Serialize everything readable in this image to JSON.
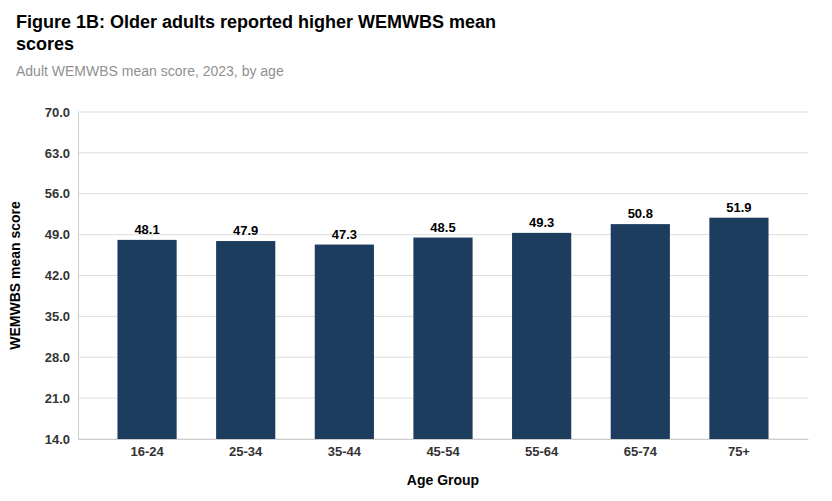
{
  "chart_data": {
    "type": "bar",
    "title": "Figure 1B: Older adults reported higher WEMWBS mean\nscores",
    "subtitle": "Adult WEMWBS mean score, 2023, by age",
    "xlabel": "Age Group",
    "ylabel": "WEMWBS mean score",
    "categories": [
      "16-24",
      "25-34",
      "35-44",
      "45-54",
      "55-64",
      "65-74",
      "75+"
    ],
    "values": [
      48.1,
      47.9,
      47.3,
      48.5,
      49.3,
      50.8,
      51.9
    ],
    "color": "#1c3d5e",
    "ylim": [
      14.0,
      70.0
    ],
    "yticks": [
      {
        "value": 14.0,
        "label": "14.0"
      },
      {
        "value": 21.0,
        "label": "21.0"
      },
      {
        "value": 28.0,
        "label": "28.0"
      },
      {
        "value": 35.0,
        "label": "35.0"
      },
      {
        "value": 42.0,
        "label": "42.0"
      },
      {
        "value": 49.0,
        "label": "49.0"
      },
      {
        "value": 56.0,
        "label": "56.0"
      },
      {
        "value": 63.0,
        "label": "63.0"
      },
      {
        "value": 70.0,
        "label": "70.0"
      }
    ],
    "grid": true,
    "data_labels": true
  }
}
